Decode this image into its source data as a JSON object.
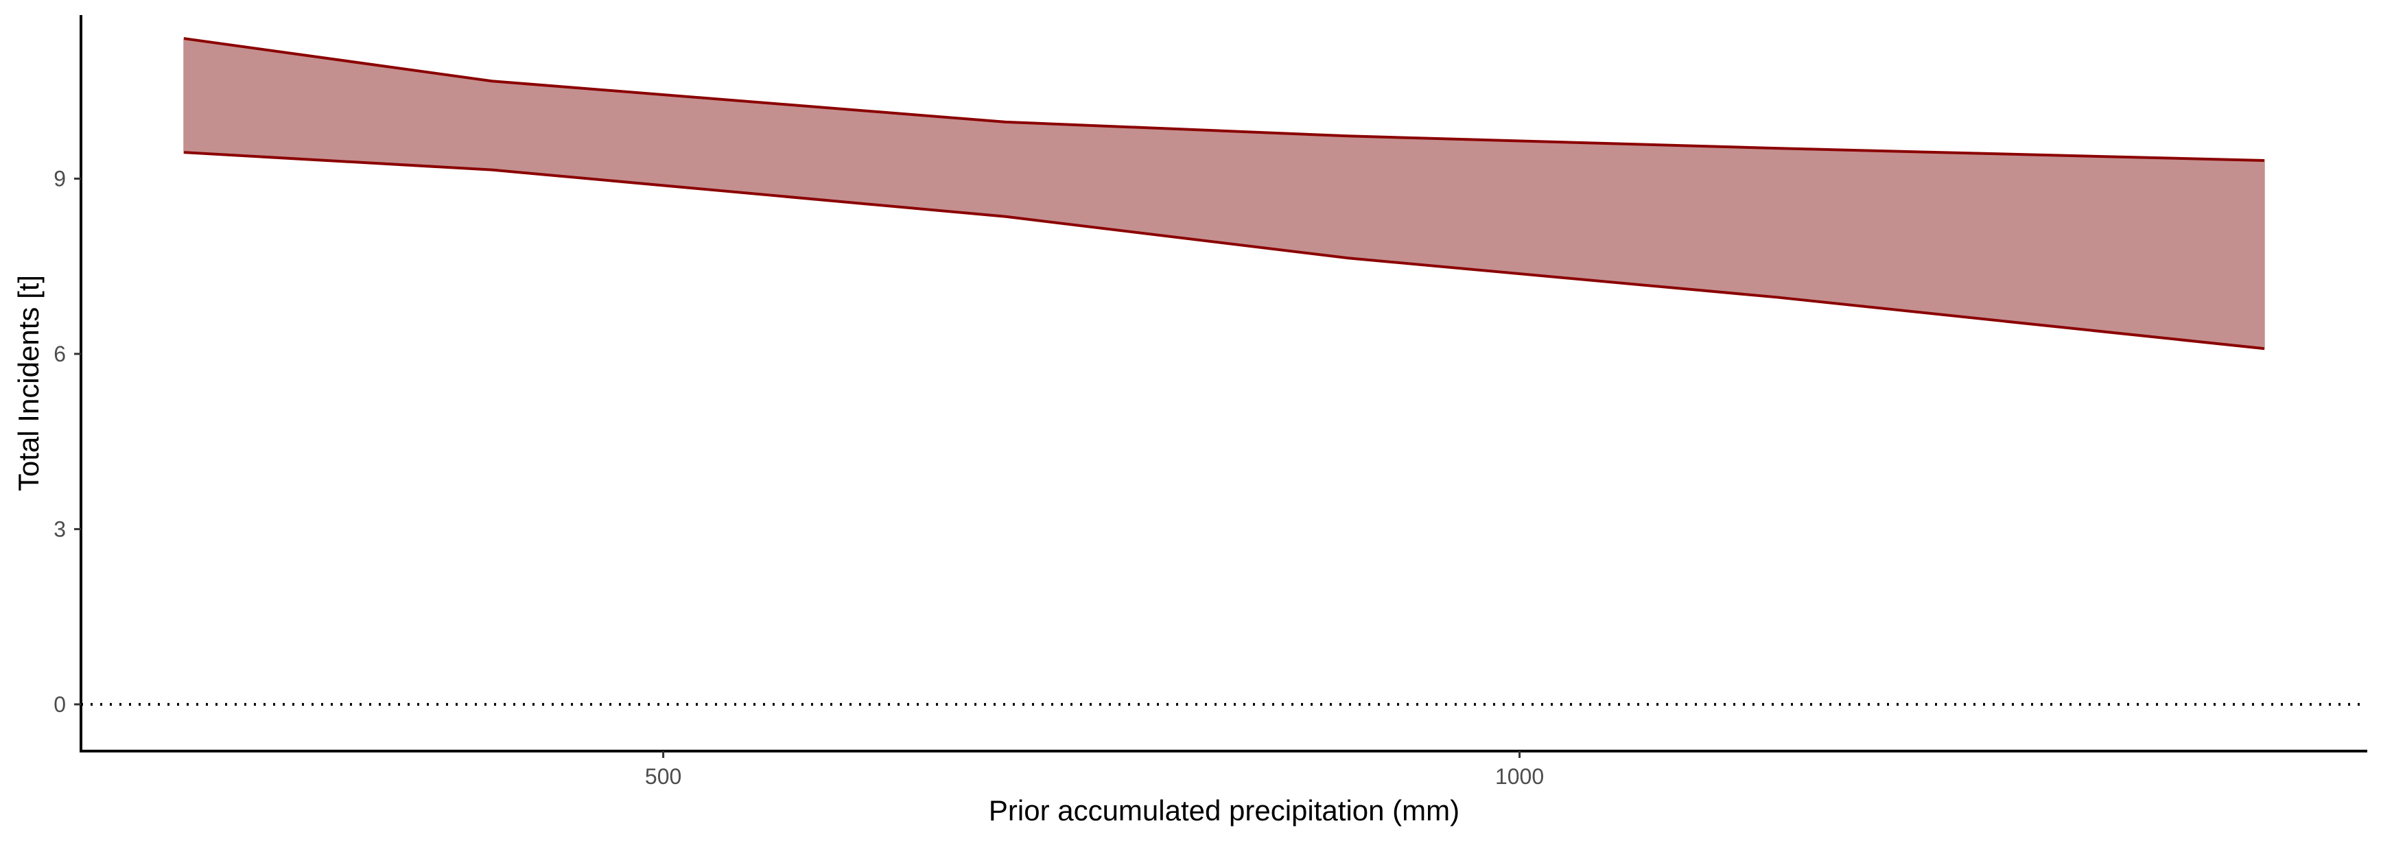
{
  "chart_data": {
    "type": "area",
    "title": "",
    "xlabel": "Prior accumulated precipitation (mm)",
    "ylabel": "Total Incidents [t]",
    "xlim": [
      160,
      1495
    ],
    "ylim": [
      -0.8,
      11.8
    ],
    "x_ticks": [
      500,
      1000
    ],
    "y_ticks": [
      0,
      3,
      6,
      9
    ],
    "grid": false,
    "legend": "none",
    "reference_line": {
      "y": 0,
      "style": "dotted",
      "color": "#000000"
    },
    "series": [
      {
        "kind": "ribbon",
        "x": [
          220,
          400,
          700,
          900,
          1150,
          1435
        ],
        "upper": [
          11.4,
          10.67,
          9.97,
          9.73,
          9.52,
          9.31
        ],
        "lower": [
          9.45,
          9.15,
          8.35,
          7.64,
          6.97,
          6.09
        ]
      }
    ],
    "colors": {
      "fill": "#c48f8f",
      "stroke": "#8b0000",
      "axis": "#000000",
      "tick_text": "#4d4d4d"
    }
  }
}
